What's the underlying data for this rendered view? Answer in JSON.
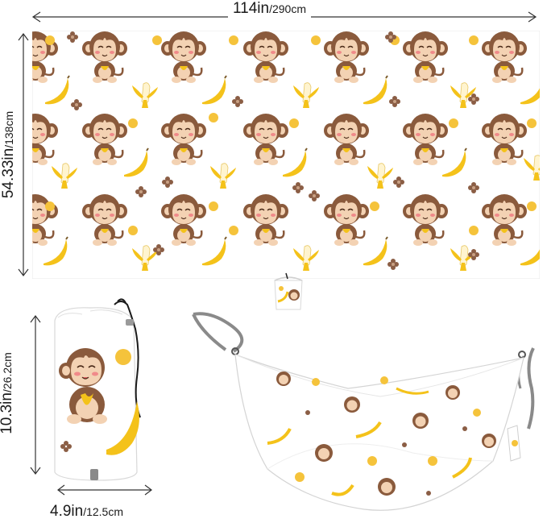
{
  "dimensions": {
    "width": {
      "primary": "114in",
      "secondary": "/290cm"
    },
    "length": {
      "primary": "54.33in",
      "secondary": "/138cm"
    },
    "bag_height": {
      "primary": "10.3in",
      "secondary": "/26.2cm"
    },
    "bag_width": {
      "primary": "4.9in",
      "secondary": "/12.5cm"
    }
  },
  "colors": {
    "monkey_brown": "#8a5a3c",
    "monkey_face": "#f3d2b3",
    "banana_yellow": "#f4c21a",
    "dot_yellow": "#f5c33b",
    "flower_brown": "#8b5e45",
    "strap_gray": "#8a8a8a",
    "arrow": "#333333"
  },
  "illustrations": {
    "pattern_motifs": [
      "monkey-icon",
      "banana-icon",
      "peeled-banana-icon",
      "dot-icon",
      "flower-icon"
    ]
  }
}
